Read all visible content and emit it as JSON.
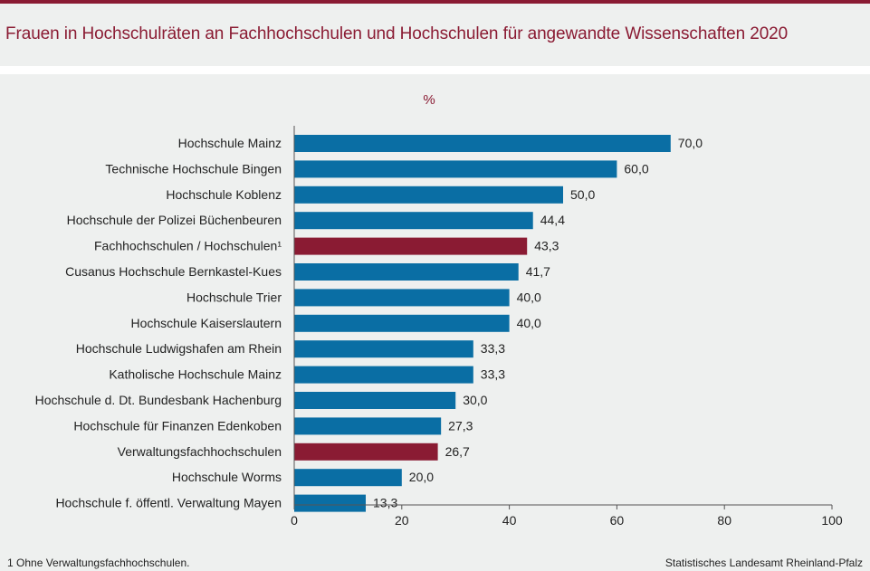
{
  "title": "Frauen in Hochschulräten an Fachhochschulen und Hochschulen für angewandte Wissenschaften 2020",
  "footnote": "1 Ohne Verwaltungsfachhochschulen.",
  "source": "Statistisches Landesamt Rheinland-Pfalz",
  "colors": {
    "bar": "#0a6ea4",
    "highlight": "#8a1b33",
    "accent": "#8a1b33"
  },
  "chart_data": {
    "type": "bar",
    "orientation": "horizontal",
    "unit_label": "%",
    "categories": [
      "Hochschule Mainz",
      "Technische Hochschule Bingen",
      "Hochschule Koblenz",
      "Hochschule der Polizei Büchenbeuren",
      "Fachhochschulen / Hochschulen¹",
      "Cusanus Hochschule Bernkastel-Kues",
      "Hochschule Trier",
      "Hochschule Kaiserslautern",
      "Hochschule Ludwigshafen am Rhein",
      "Katholische Hochschule Mainz",
      "Hochschule d. Dt. Bundesbank Hachenburg",
      "Hochschule für Finanzen Edenkoben",
      "Verwaltungsfachhochschulen",
      "Hochschule Worms",
      "Hochschule f. öffentl. Verwaltung Mayen"
    ],
    "values": [
      70.0,
      60.0,
      50.0,
      44.4,
      43.3,
      41.7,
      40.0,
      40.0,
      33.3,
      33.3,
      30.0,
      27.3,
      26.7,
      20.0,
      13.3
    ],
    "value_labels": [
      "70,0",
      "60,0",
      "50,0",
      "44,4",
      "43,3",
      "41,7",
      "40,0",
      "40,0",
      "33,3",
      "33,3",
      "30,0",
      "27,3",
      "26,7",
      "20,0",
      "13,3"
    ],
    "highlighted": [
      "Fachhochschulen / Hochschulen¹",
      "Verwaltungsfachhochschulen"
    ],
    "xlim": [
      0,
      100
    ],
    "xticks": [
      0,
      20,
      40,
      60,
      80,
      100
    ],
    "grid": false,
    "legend": "none"
  }
}
